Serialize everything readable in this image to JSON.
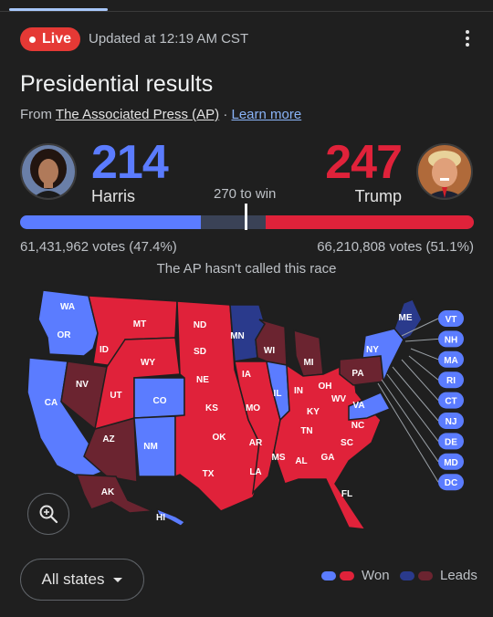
{
  "status": {
    "live_label": "Live",
    "updated": "Updated at 12:19 AM CST"
  },
  "header": {
    "title": "Presidential results",
    "source_prefix": "From",
    "source_name": "The Associated Press (AP)",
    "separator": "·",
    "learn_more": "Learn more"
  },
  "harris": {
    "name": "Harris",
    "electoral_votes": "214",
    "popular_votes": "61,431,962 votes (47.4%)",
    "color": "#5b7cff"
  },
  "trump": {
    "name": "Trump",
    "electoral_votes": "247",
    "popular_votes": "66,210,808 votes (51.1%)",
    "color": "#e0223a"
  },
  "bar": {
    "to_win_label": "270 to win",
    "total": 538,
    "harris_won": 214,
    "harris_leads": 0,
    "trump_leads": 0,
    "trump_won": 247,
    "lead_dark_blue": "#2a3a8c",
    "lead_dark_red": "#6b2430"
  },
  "race_status": "The AP hasn't called this race",
  "map": {
    "labels": [
      "WA",
      "OR",
      "CA",
      "NV",
      "ID",
      "MT",
      "WY",
      "UT",
      "CO",
      "AZ",
      "NM",
      "ND",
      "SD",
      "NE",
      "KS",
      "OK",
      "TX",
      "MN",
      "IA",
      "MO",
      "AR",
      "LA",
      "WI",
      "IL",
      "MI",
      "IN",
      "OH",
      "KY",
      "TN",
      "MS",
      "AL",
      "GA",
      "FL",
      "SC",
      "NC",
      "VA",
      "WV",
      "PA",
      "NY",
      "ME",
      "AK",
      "HI"
    ],
    "callouts": [
      "VT",
      "NH",
      "MA",
      "RI",
      "CT",
      "NJ",
      "DE",
      "MD",
      "DC"
    ]
  },
  "controls": {
    "all_states": "All states"
  },
  "legend": {
    "won": "Won",
    "leads": "Leads"
  },
  "icons": {
    "zoom": "zoom-in-icon",
    "menu": "more-vert-icon",
    "dropdown": "caret-down-icon"
  }
}
